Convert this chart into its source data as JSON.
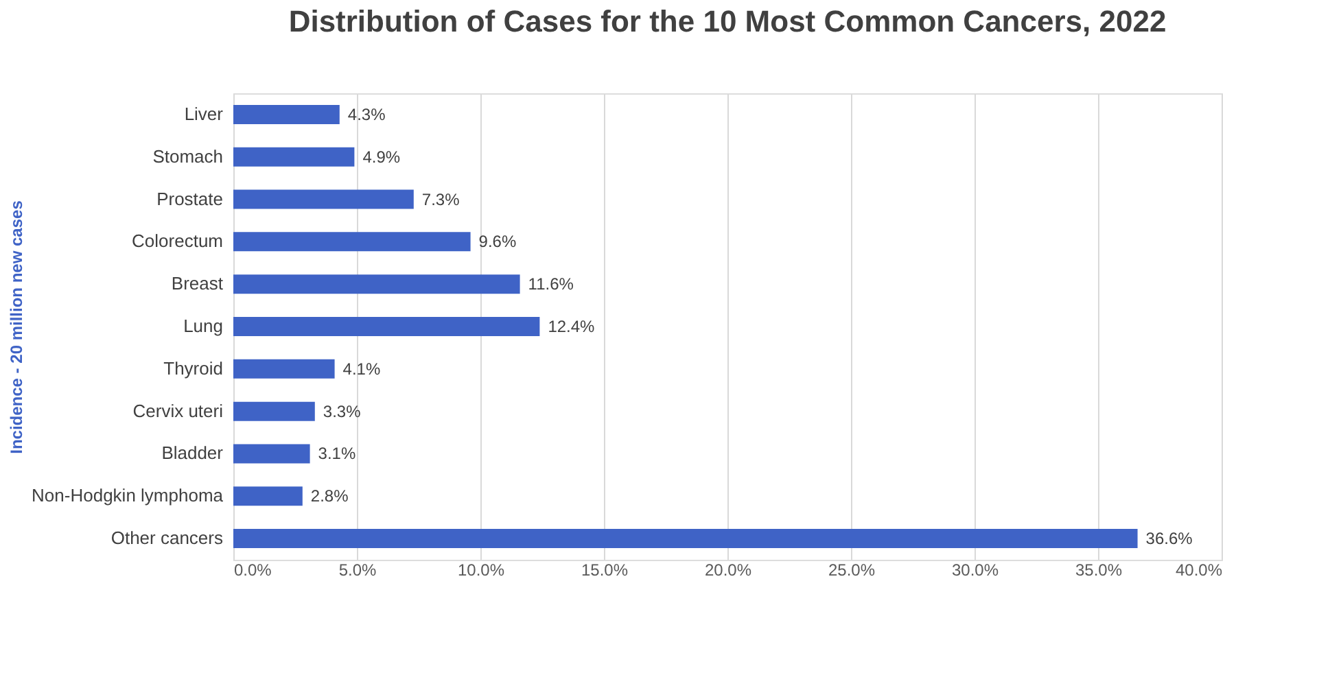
{
  "chart_data": {
    "type": "bar",
    "orientation": "horizontal",
    "title": "Distribution  of Cases for the 10 Most Common Cancers, 2022",
    "ylabel": "Incidence - 20 million new cases",
    "categories": [
      "Liver",
      "Stomach",
      "Prostate",
      "Colorectum",
      "Breast",
      "Lung",
      "Thyroid",
      "Cervix uteri",
      "Bladder",
      "Non-Hodgkin lymphoma",
      "Other cancers"
    ],
    "values": [
      4.3,
      4.9,
      7.3,
      9.6,
      11.6,
      12.4,
      4.1,
      3.3,
      3.1,
      2.8,
      36.6
    ],
    "value_labels": [
      "4.3%",
      "4.9%",
      "7.3%",
      "9.6%",
      "11.6%",
      "12.4%",
      "4.1%",
      "3.3%",
      "3.1%",
      "2.8%",
      "36.6%"
    ],
    "color": "#3f63c6",
    "xlim": [
      0,
      40
    ],
    "xticks": [
      {
        "value": 0,
        "label": "0.0%"
      },
      {
        "value": 5,
        "label": "5.0%"
      },
      {
        "value": 10,
        "label": "10.0%"
      },
      {
        "value": 15,
        "label": "15.0%"
      },
      {
        "value": 20,
        "label": "20.0%"
      },
      {
        "value": 25,
        "label": "25.0%"
      },
      {
        "value": 30,
        "label": "30.0%"
      },
      {
        "value": 35,
        "label": "35.0%"
      },
      {
        "value": 40,
        "label": "40.0%"
      }
    ],
    "grid": "x"
  }
}
